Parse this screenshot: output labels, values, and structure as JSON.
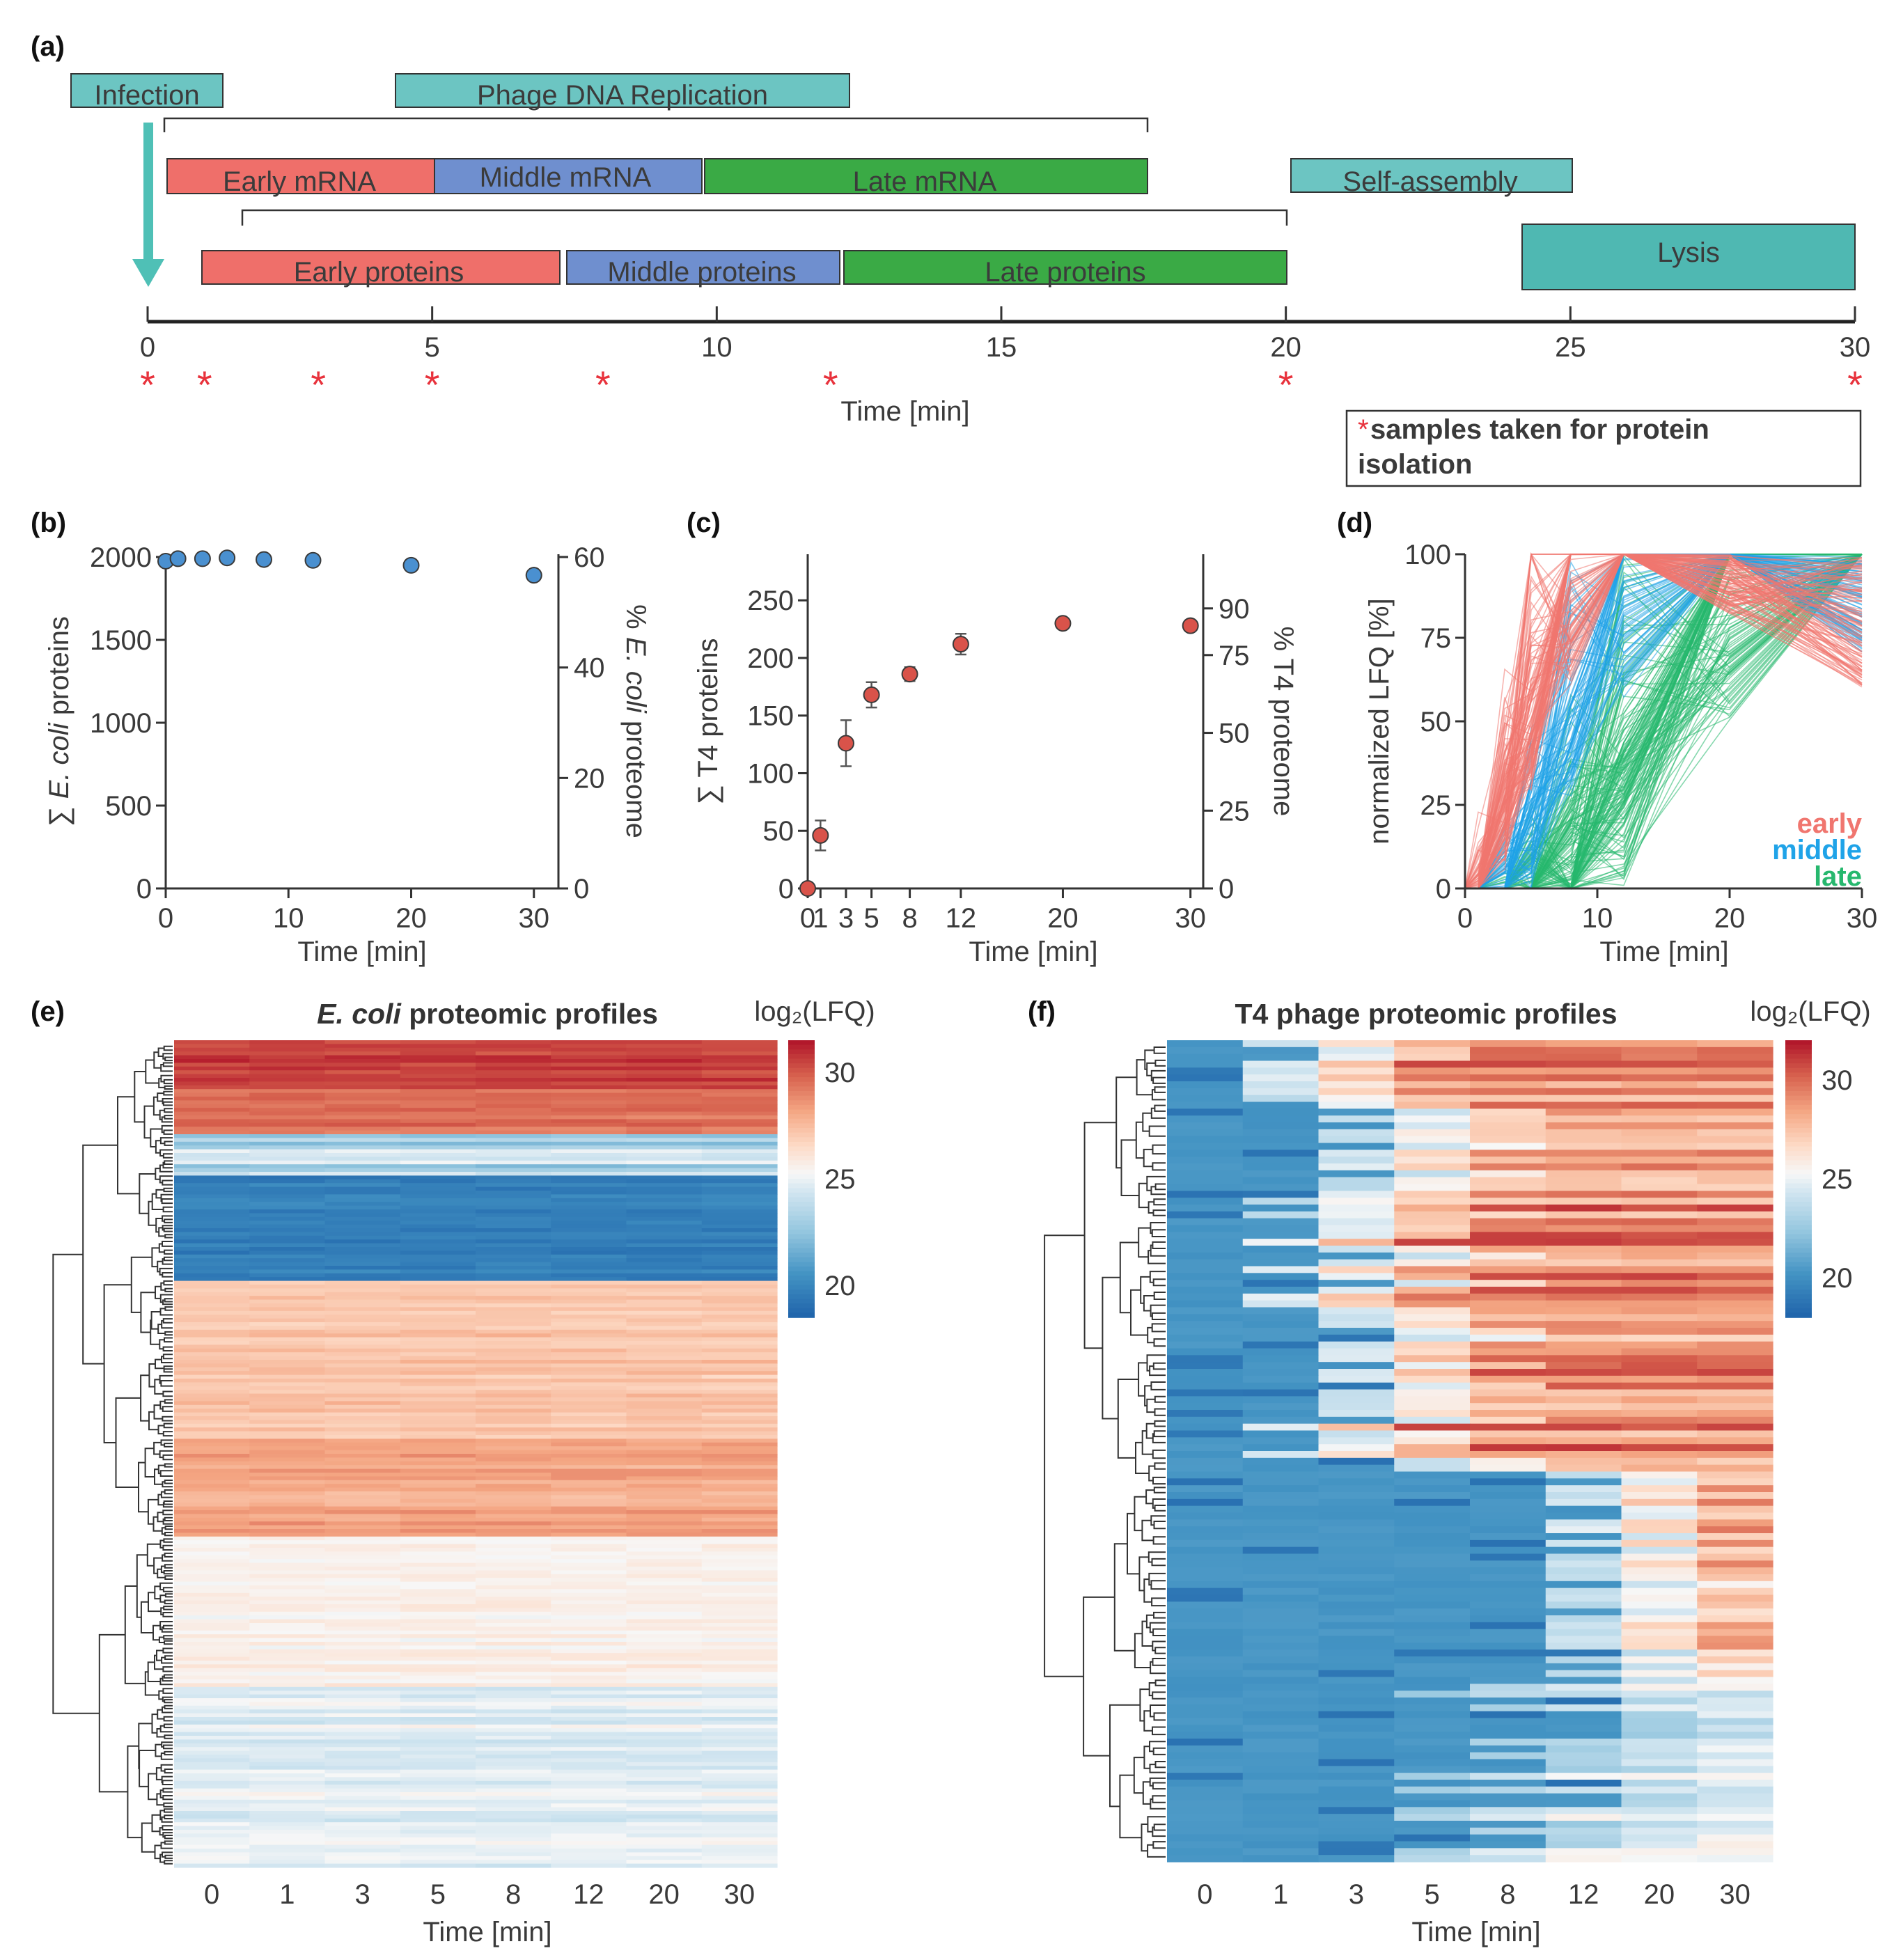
{
  "panels": {
    "a": "(a)",
    "b": "(b)",
    "c": "(c)",
    "d": "(d)",
    "e": "(e)",
    "f": "(f)"
  },
  "timeline": {
    "colors": {
      "early": "#ef6f6a",
      "middle": "#6f8fcf",
      "late": "#3aaa45",
      "teal": "#6cc5c2",
      "teal_dark": "#4fb8b2",
      "asterisk": "#e8323c"
    },
    "phases": {
      "infection": "Infection",
      "replication": "Phage DNA Replication",
      "self_assembly": "Self-assembly",
      "lysis": "Lysis"
    },
    "mrna": {
      "early": "Early mRNA",
      "middle": "Middle  mRNA",
      "late": "Late  mRNA"
    },
    "proteins": {
      "early": "Early proteins",
      "middle": "Middle proteins",
      "late": "Late proteins"
    },
    "axis": {
      "ticks": [
        "0",
        "5",
        "10",
        "15",
        "20",
        "25",
        "30"
      ],
      "label": "Time [min]"
    },
    "sample_times": [
      0,
      1,
      3,
      5,
      8,
      12,
      20,
      30
    ],
    "asterisk": "*",
    "legend": {
      "star": "*",
      "text_line1": "samples taken for protein",
      "text_line2": "isolation"
    }
  },
  "chart_data": [
    {
      "panel": "b",
      "type": "scatter",
      "x": [
        0,
        1,
        3,
        5,
        8,
        12,
        20,
        30
      ],
      "y": [
        1975,
        1990,
        1990,
        1995,
        1985,
        1980,
        1950,
        1890
      ],
      "err": [
        15,
        15,
        15,
        15,
        15,
        15,
        20,
        50
      ],
      "xlim": [
        0,
        32
      ],
      "ylim": [
        0,
        2000
      ],
      "xticks": [
        "0",
        "10",
        "20",
        "30"
      ],
      "yticks": [
        "0",
        "500",
        "1000",
        "1500",
        "2000"
      ],
      "y2ticks": [
        "0",
        "20",
        "40",
        "60"
      ],
      "xlabel": "Time [min]",
      "ylabel_sum": "∑ ",
      "ylabel_italic": "E. coli",
      "ylabel_rest": " proteins",
      "y2label_pre": "% ",
      "y2label_italic": "E. coli",
      "y2label_rest": " proteome",
      "color": "#4a90d0"
    },
    {
      "panel": "c",
      "type": "scatter",
      "x": [
        0,
        1,
        3,
        5,
        8,
        12,
        20,
        30
      ],
      "y": [
        0,
        46,
        126,
        168,
        186,
        212,
        230,
        228
      ],
      "err": [
        2,
        13,
        20,
        11,
        6,
        9,
        4,
        4
      ],
      "xlim": [
        0,
        31
      ],
      "ylim": [
        0,
        290
      ],
      "xticks": [
        "0",
        "1",
        "3",
        "5",
        "8",
        "12",
        "20",
        "30"
      ],
      "yticks": [
        "0",
        "50",
        "100",
        "150",
        "200",
        "250"
      ],
      "y2ticks": [
        "0",
        "25",
        "50",
        "75",
        "90"
      ],
      "xlabel": "Time [min]",
      "ylabel": "∑ T4 proteins",
      "y2label": "% T4 proteome",
      "color": "#d9534a"
    },
    {
      "panel": "d",
      "type": "line",
      "xlim": [
        0,
        30
      ],
      "ylim": [
        0,
        100
      ],
      "xticks": [
        "0",
        "10",
        "20",
        "30"
      ],
      "yticks": [
        "0",
        "25",
        "50",
        "75",
        "100"
      ],
      "xlabel": "Time [min]",
      "ylabel": "normalized LFQ [%]",
      "series": [
        {
          "name": "early",
          "color": "#f0766f",
          "peak_min": 4,
          "peak_max": 12
        },
        {
          "name": "middle",
          "color": "#1fa3e8",
          "peak_min": 8,
          "peak_max": 20
        },
        {
          "name": "late",
          "color": "#27b86e",
          "peak_min": 12,
          "peak_max": 30
        }
      ],
      "legend": {
        "early": "early",
        "middle": "middle",
        "late": "late"
      }
    },
    {
      "panel": "e",
      "type": "heatmap",
      "title_italic": "E. coli",
      "title_rest": " proteomic profiles",
      "columns": [
        "0",
        "1",
        "3",
        "5",
        "8",
        "12",
        "20",
        "30"
      ],
      "xlabel": "Time [min]",
      "colorbar": {
        "label": "log₂(LFQ)",
        "ticks": [
          "20",
          "25",
          "30"
        ],
        "range": [
          18.5,
          31.5
        ]
      }
    },
    {
      "panel": "f",
      "type": "heatmap",
      "title": "T4 phage proteomic profiles",
      "columns": [
        "0",
        "1",
        "3",
        "5",
        "8",
        "12",
        "20",
        "30"
      ],
      "xlabel": "Time [min]",
      "colorbar": {
        "label": "log₂(LFQ)",
        "ticks": [
          "20",
          "25",
          "30"
        ],
        "range": [
          18,
          32
        ]
      }
    }
  ]
}
